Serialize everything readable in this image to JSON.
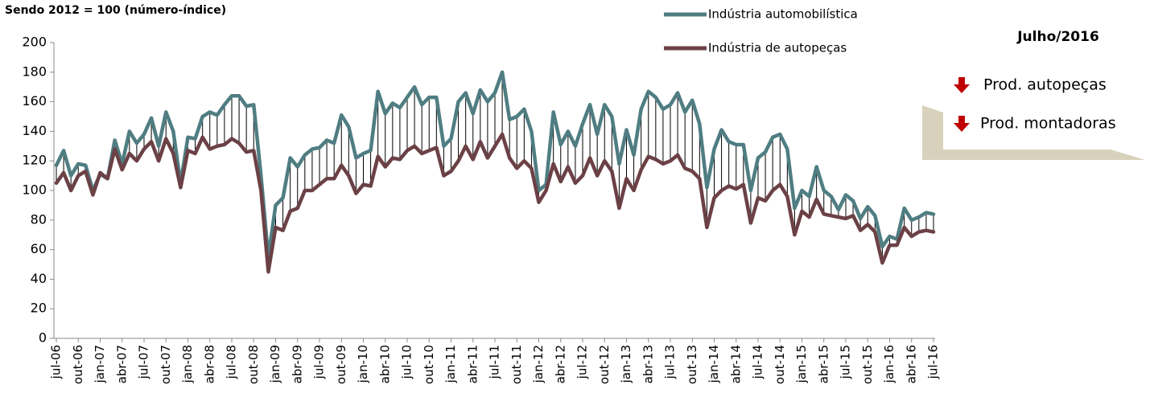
{
  "chart_data": {
    "type": "line",
    "title": "Sendo 2012 = 100 (número-índice)",
    "categories": [
      "jul-06",
      null,
      null,
      "out-06",
      null,
      null,
      "jan-07",
      null,
      null,
      "abr-07",
      null,
      null,
      "jul-07",
      null,
      null,
      "out-07",
      null,
      null,
      "jan-08",
      null,
      null,
      "abr-08",
      null,
      null,
      "jul-08",
      null,
      null,
      "out-08",
      null,
      null,
      "jan-09",
      null,
      null,
      "abr-09",
      null,
      null,
      "jul-09",
      null,
      null,
      "out-09",
      null,
      null,
      "jan-10",
      null,
      null,
      "abr-10",
      null,
      null,
      "jul-10",
      null,
      null,
      "out-10",
      null,
      null,
      "jan-11",
      null,
      null,
      "abr-11",
      null,
      null,
      "jul-11",
      null,
      null,
      "out-11",
      null,
      null,
      "jan-12",
      null,
      null,
      "abr-12",
      null,
      null,
      "jul-12",
      null,
      null,
      "out-12",
      null,
      null,
      "jan-13",
      null,
      null,
      "abr-13",
      null,
      null,
      "jul-13",
      null,
      null,
      "out-13",
      null,
      null,
      "jan-14",
      null,
      null,
      "abr-14",
      null,
      null,
      "jul-14",
      null,
      null,
      "out-14",
      null,
      null,
      "jan-15",
      null,
      null,
      "abr-15",
      null,
      null,
      "jul-15",
      null,
      null,
      "out-15",
      null,
      null,
      "jan-16",
      null,
      null,
      "abr-16",
      null,
      null,
      "jul-16"
    ],
    "series": [
      {
        "name": "Indústria automobilística",
        "color": "#4f7d82",
        "values": [
          117,
          127,
          110,
          118,
          117,
          100,
          111,
          108,
          134,
          118,
          140,
          132,
          138,
          149,
          130,
          153,
          140,
          105,
          136,
          135,
          150,
          153,
          151,
          158,
          164,
          164,
          157,
          158,
          110,
          55,
          90,
          95,
          122,
          116,
          124,
          128,
          129,
          134,
          132,
          151,
          143,
          122,
          125,
          127,
          167,
          152,
          159,
          156,
          163,
          170,
          158,
          163,
          163,
          130,
          135,
          160,
          166,
          152,
          168,
          160,
          166,
          180,
          148,
          150,
          155,
          140,
          100,
          104,
          153,
          131,
          140,
          130,
          145,
          158,
          138,
          158,
          150,
          118,
          141,
          124,
          155,
          167,
          163,
          155,
          158,
          166,
          153,
          161,
          145,
          102,
          128,
          141,
          133,
          131,
          131,
          100,
          122,
          126,
          136,
          138,
          128,
          88,
          100,
          96,
          116,
          100,
          96,
          87,
          97,
          93,
          81,
          89,
          83,
          62,
          69,
          67,
          88,
          80,
          82,
          85,
          84
        ]
      },
      {
        "name": "Indústria de autopeças",
        "color": "#6b4146",
        "values": [
          105,
          112,
          100,
          110,
          113,
          97,
          112,
          108,
          128,
          114,
          125,
          120,
          128,
          133,
          120,
          135,
          125,
          102,
          127,
          125,
          136,
          128,
          130,
          131,
          135,
          132,
          126,
          127,
          100,
          45,
          75,
          73,
          86,
          88,
          100,
          100,
          104,
          108,
          108,
          117,
          110,
          98,
          104,
          103,
          123,
          116,
          122,
          121,
          127,
          130,
          125,
          127,
          129,
          110,
          113,
          120,
          130,
          121,
          133,
          122,
          130,
          138,
          122,
          115,
          120,
          115,
          92,
          100,
          118,
          106,
          116,
          105,
          110,
          122,
          110,
          120,
          113,
          88,
          108,
          100,
          114,
          123,
          121,
          118,
          120,
          124,
          115,
          113,
          108,
          75,
          95,
          100,
          103,
          101,
          104,
          78,
          95,
          93,
          100,
          104,
          96,
          70,
          86,
          82,
          94,
          84,
          83,
          82,
          81,
          83,
          73,
          77,
          72,
          51,
          63,
          63,
          75,
          69,
          72,
          73,
          72
        ]
      }
    ],
    "ylim": [
      0,
      200
    ],
    "yticks": [
      0,
      20,
      40,
      60,
      80,
      100,
      120,
      140,
      160,
      180,
      200
    ],
    "grid": false,
    "panel": {
      "title": "Julho/2016",
      "items": [
        "Prod. autopeças",
        "Prod. montadoras"
      ]
    }
  }
}
